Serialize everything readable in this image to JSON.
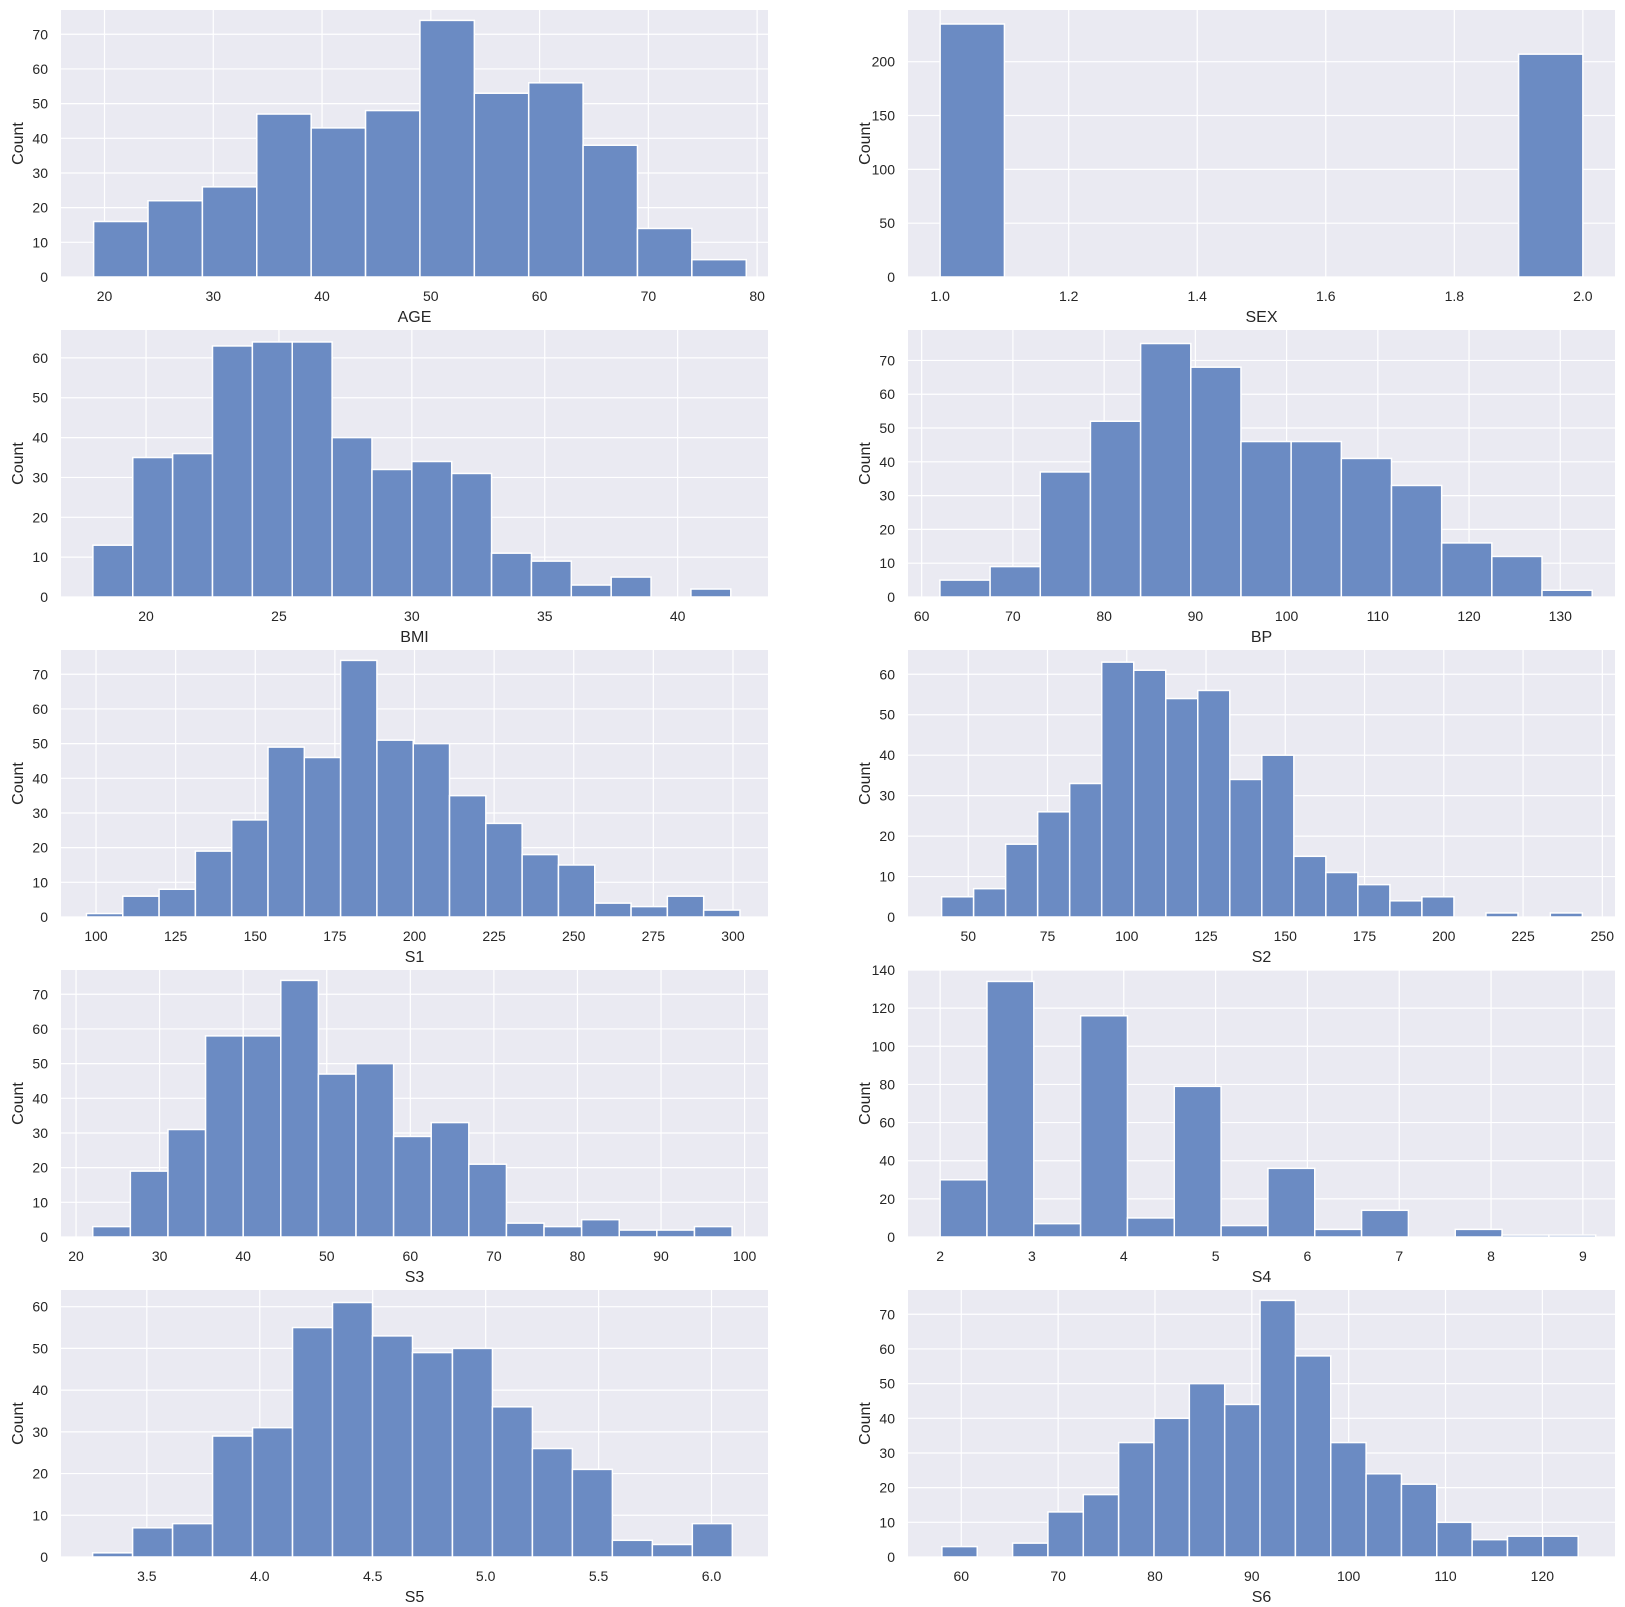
{
  "colors": {
    "plot_bg": "#eaeaf2",
    "grid": "#ffffff",
    "bar_fill": "#6b8bc3",
    "bar_edge": "#ffffff",
    "text": "#262626"
  },
  "chart_data": [
    {
      "type": "bar",
      "xlabel": "AGE",
      "ylabel": "Count",
      "grid": true,
      "xlim": [
        16,
        81
      ],
      "ylim": [
        0,
        77
      ],
      "xticks": [
        20,
        30,
        40,
        50,
        60,
        70,
        80
      ],
      "yticks": [
        0,
        10,
        20,
        30,
        40,
        50,
        60,
        70
      ],
      "bins": [
        {
          "x0": 19,
          "x1": 24,
          "y": 16
        },
        {
          "x0": 24,
          "x1": 29,
          "y": 22
        },
        {
          "x0": 29,
          "x1": 34,
          "y": 26
        },
        {
          "x0": 34,
          "x1": 39,
          "y": 47
        },
        {
          "x0": 39,
          "x1": 44,
          "y": 43
        },
        {
          "x0": 44,
          "x1": 49,
          "y": 48
        },
        {
          "x0": 49,
          "x1": 54,
          "y": 74
        },
        {
          "x0": 54,
          "x1": 59,
          "y": 53
        },
        {
          "x0": 59,
          "x1": 64,
          "y": 56
        },
        {
          "x0": 64,
          "x1": 69,
          "y": 38
        },
        {
          "x0": 69,
          "x1": 74,
          "y": 14
        },
        {
          "x0": 74,
          "x1": 79,
          "y": 5
        }
      ]
    },
    {
      "type": "bar",
      "xlabel": "SEX",
      "ylabel": "Count",
      "grid": true,
      "xlim": [
        0.95,
        2.05
      ],
      "ylim": [
        0,
        248
      ],
      "xticks": [
        "1.0",
        "1.2",
        "1.4",
        "1.6",
        "1.8",
        "2.0"
      ],
      "yticks": [
        0,
        50,
        100,
        150,
        200
      ],
      "bins": [
        {
          "x0": 1.0,
          "x1": 1.1,
          "y": 235
        },
        {
          "x0": 1.9,
          "x1": 2.0,
          "y": 207
        }
      ]
    },
    {
      "type": "bar",
      "xlabel": "BMI",
      "ylabel": "Count",
      "grid": true,
      "xlim": [
        16.8,
        43.4
      ],
      "ylim": [
        0,
        67
      ],
      "xticks": [
        20,
        25,
        30,
        35,
        40
      ],
      "yticks": [
        0,
        10,
        20,
        30,
        40,
        50,
        60
      ],
      "bins": [
        {
          "x0": 18,
          "x1": 19.5,
          "y": 13
        },
        {
          "x0": 19.5,
          "x1": 21,
          "y": 35
        },
        {
          "x0": 21,
          "x1": 22.5,
          "y": 36
        },
        {
          "x0": 22.5,
          "x1": 24,
          "y": 63
        },
        {
          "x0": 24,
          "x1": 25.5,
          "y": 64
        },
        {
          "x0": 25.5,
          "x1": 27,
          "y": 64
        },
        {
          "x0": 27,
          "x1": 28.5,
          "y": 40
        },
        {
          "x0": 28.5,
          "x1": 30,
          "y": 32
        },
        {
          "x0": 30,
          "x1": 31.5,
          "y": 34
        },
        {
          "x0": 31.5,
          "x1": 33,
          "y": 31
        },
        {
          "x0": 33,
          "x1": 34.5,
          "y": 11
        },
        {
          "x0": 34.5,
          "x1": 36,
          "y": 9
        },
        {
          "x0": 36,
          "x1": 37.5,
          "y": 3
        },
        {
          "x0": 37.5,
          "x1": 39,
          "y": 5
        },
        {
          "x0": 40.5,
          "x1": 42,
          "y": 2
        }
      ]
    },
    {
      "type": "bar",
      "xlabel": "BP",
      "ylabel": "Count",
      "grid": true,
      "xlim": [
        58.5,
        136
      ],
      "ylim": [
        0,
        79
      ],
      "xticks": [
        60,
        70,
        80,
        90,
        100,
        110,
        120,
        130
      ],
      "yticks": [
        0,
        10,
        20,
        30,
        40,
        50,
        60,
        70
      ],
      "bins": [
        {
          "x0": 62,
          "x1": 67.5,
          "y": 5
        },
        {
          "x0": 67.5,
          "x1": 73,
          "y": 9
        },
        {
          "x0": 73,
          "x1": 78.5,
          "y": 37
        },
        {
          "x0": 78.5,
          "x1": 84,
          "y": 52
        },
        {
          "x0": 84,
          "x1": 89.5,
          "y": 75
        },
        {
          "x0": 89.5,
          "x1": 95,
          "y": 68
        },
        {
          "x0": 95,
          "x1": 100.5,
          "y": 46
        },
        {
          "x0": 100.5,
          "x1": 106,
          "y": 46
        },
        {
          "x0": 106,
          "x1": 111.5,
          "y": 41
        },
        {
          "x0": 111.5,
          "x1": 117,
          "y": 33
        },
        {
          "x0": 117,
          "x1": 122.5,
          "y": 16
        },
        {
          "x0": 122.5,
          "x1": 128,
          "y": 12
        },
        {
          "x0": 128,
          "x1": 133.5,
          "y": 2
        }
      ]
    },
    {
      "type": "bar",
      "xlabel": "S1",
      "ylabel": "Count",
      "grid": true,
      "xlim": [
        89,
        311
      ],
      "ylim": [
        0,
        77
      ],
      "xticks": [
        100,
        125,
        150,
        175,
        200,
        225,
        250,
        275,
        300
      ],
      "yticks": [
        0,
        10,
        20,
        30,
        40,
        50,
        60,
        70
      ],
      "bins": [
        {
          "x0": 97,
          "x1": 108.4,
          "y": 1
        },
        {
          "x0": 108.4,
          "x1": 119.8,
          "y": 6
        },
        {
          "x0": 119.8,
          "x1": 131.2,
          "y": 8
        },
        {
          "x0": 131.2,
          "x1": 142.6,
          "y": 19
        },
        {
          "x0": 142.6,
          "x1": 154,
          "y": 28
        },
        {
          "x0": 154,
          "x1": 165.4,
          "y": 49
        },
        {
          "x0": 165.4,
          "x1": 176.8,
          "y": 46
        },
        {
          "x0": 176.8,
          "x1": 188.2,
          "y": 74
        },
        {
          "x0": 188.2,
          "x1": 199.6,
          "y": 51
        },
        {
          "x0": 199.6,
          "x1": 211,
          "y": 50
        },
        {
          "x0": 211,
          "x1": 222.4,
          "y": 35
        },
        {
          "x0": 222.4,
          "x1": 233.8,
          "y": 27
        },
        {
          "x0": 233.8,
          "x1": 245.2,
          "y": 18
        },
        {
          "x0": 245.2,
          "x1": 256.6,
          "y": 15
        },
        {
          "x0": 256.6,
          "x1": 268,
          "y": 4
        },
        {
          "x0": 268,
          "x1": 279.4,
          "y": 3
        },
        {
          "x0": 279.4,
          "x1": 290.8,
          "y": 6
        },
        {
          "x0": 290.8,
          "x1": 302.2,
          "y": 2
        }
      ]
    },
    {
      "type": "bar",
      "xlabel": "S2",
      "ylabel": "Count",
      "grid": true,
      "xlim": [
        31,
        254
      ],
      "ylim": [
        0,
        66
      ],
      "xticks": [
        50,
        75,
        100,
        125,
        150,
        175,
        200,
        225,
        250
      ],
      "yticks": [
        0,
        10,
        20,
        30,
        40,
        50,
        60
      ],
      "bins": [
        {
          "x0": 41.6,
          "x1": 51.7,
          "y": 5
        },
        {
          "x0": 51.7,
          "x1": 61.8,
          "y": 7
        },
        {
          "x0": 61.8,
          "x1": 71.9,
          "y": 18
        },
        {
          "x0": 71.9,
          "x1": 82,
          "y": 26
        },
        {
          "x0": 82,
          "x1": 92.1,
          "y": 33
        },
        {
          "x0": 92.1,
          "x1": 102.2,
          "y": 63
        },
        {
          "x0": 102.2,
          "x1": 112.3,
          "y": 61
        },
        {
          "x0": 112.3,
          "x1": 122.4,
          "y": 54
        },
        {
          "x0": 122.4,
          "x1": 132.5,
          "y": 56
        },
        {
          "x0": 132.5,
          "x1": 142.6,
          "y": 34
        },
        {
          "x0": 142.6,
          "x1": 152.7,
          "y": 40
        },
        {
          "x0": 152.7,
          "x1": 162.8,
          "y": 15
        },
        {
          "x0": 162.8,
          "x1": 172.9,
          "y": 11
        },
        {
          "x0": 172.9,
          "x1": 183,
          "y": 8
        },
        {
          "x0": 183,
          "x1": 193.1,
          "y": 4
        },
        {
          "x0": 193.1,
          "x1": 203.2,
          "y": 5
        },
        {
          "x0": 213.3,
          "x1": 223.4,
          "y": 1
        },
        {
          "x0": 233.6,
          "x1": 243.7,
          "y": 1
        }
      ]
    },
    {
      "type": "bar",
      "xlabel": "S3",
      "ylabel": "Count",
      "grid": true,
      "xlim": [
        18.2,
        102.8
      ],
      "ylim": [
        0,
        77
      ],
      "xticks": [
        20,
        30,
        40,
        50,
        60,
        70,
        80,
        90,
        100
      ],
      "yticks": [
        0,
        10,
        20,
        30,
        40,
        50,
        60,
        70
      ],
      "bins": [
        {
          "x0": 22,
          "x1": 26.5,
          "y": 3
        },
        {
          "x0": 26.5,
          "x1": 31,
          "y": 19
        },
        {
          "x0": 31,
          "x1": 35.5,
          "y": 31
        },
        {
          "x0": 35.5,
          "x1": 40,
          "y": 58
        },
        {
          "x0": 40,
          "x1": 44.5,
          "y": 58
        },
        {
          "x0": 44.5,
          "x1": 49,
          "y": 74
        },
        {
          "x0": 49,
          "x1": 53.5,
          "y": 47
        },
        {
          "x0": 53.5,
          "x1": 58,
          "y": 50
        },
        {
          "x0": 58,
          "x1": 62.5,
          "y": 29
        },
        {
          "x0": 62.5,
          "x1": 67,
          "y": 33
        },
        {
          "x0": 67,
          "x1": 71.5,
          "y": 21
        },
        {
          "x0": 71.5,
          "x1": 76,
          "y": 4
        },
        {
          "x0": 76,
          "x1": 80.5,
          "y": 3
        },
        {
          "x0": 80.5,
          "x1": 85,
          "y": 5
        },
        {
          "x0": 85,
          "x1": 89.5,
          "y": 2
        },
        {
          "x0": 89.5,
          "x1": 94,
          "y": 2
        },
        {
          "x0": 94,
          "x1": 98.5,
          "y": 3
        }
      ]
    },
    {
      "type": "bar",
      "xlabel": "S4",
      "ylabel": "Count",
      "grid": true,
      "xlim": [
        1.65,
        9.35
      ],
      "ylim": [
        0,
        140
      ],
      "xticks": [
        2,
        3,
        4,
        5,
        6,
        7,
        8,
        9
      ],
      "yticks": [
        0,
        20,
        40,
        60,
        80,
        100,
        120,
        140
      ],
      "bins": [
        {
          "x0": 2,
          "x1": 2.51,
          "y": 30
        },
        {
          "x0": 2.51,
          "x1": 3.02,
          "y": 134
        },
        {
          "x0": 3.02,
          "x1": 3.53,
          "y": 7
        },
        {
          "x0": 3.53,
          "x1": 4.04,
          "y": 116
        },
        {
          "x0": 4.04,
          "x1": 4.55,
          "y": 10
        },
        {
          "x0": 4.55,
          "x1": 5.06,
          "y": 79
        },
        {
          "x0": 5.06,
          "x1": 5.57,
          "y": 6
        },
        {
          "x0": 5.57,
          "x1": 6.08,
          "y": 36
        },
        {
          "x0": 6.08,
          "x1": 6.59,
          "y": 4
        },
        {
          "x0": 6.59,
          "x1": 7.1,
          "y": 14
        },
        {
          "x0": 7.61,
          "x1": 8.12,
          "y": 4
        },
        {
          "x0": 8.12,
          "x1": 8.63,
          "y": 1
        },
        {
          "x0": 8.63,
          "x1": 9.14,
          "y": 1
        }
      ]
    },
    {
      "type": "bar",
      "xlabel": "S5",
      "ylabel": "Count",
      "grid": true,
      "xlim": [
        3.12,
        6.25
      ],
      "ylim": [
        0,
        64
      ],
      "xticks": [
        "3.5",
        "4.0",
        "4.5",
        "5.0",
        "5.5",
        "6.0"
      ],
      "yticks": [
        0,
        10,
        20,
        30,
        40,
        50,
        60
      ],
      "bins": [
        {
          "x0": 3.26,
          "x1": 3.437,
          "y": 1
        },
        {
          "x0": 3.437,
          "x1": 3.614,
          "y": 7
        },
        {
          "x0": 3.614,
          "x1": 3.791,
          "y": 8
        },
        {
          "x0": 3.791,
          "x1": 3.968,
          "y": 29
        },
        {
          "x0": 3.968,
          "x1": 4.145,
          "y": 31
        },
        {
          "x0": 4.145,
          "x1": 4.322,
          "y": 55
        },
        {
          "x0": 4.322,
          "x1": 4.499,
          "y": 61
        },
        {
          "x0": 4.499,
          "x1": 4.676,
          "y": 53
        },
        {
          "x0": 4.676,
          "x1": 4.853,
          "y": 49
        },
        {
          "x0": 4.853,
          "x1": 5.03,
          "y": 50
        },
        {
          "x0": 5.03,
          "x1": 5.207,
          "y": 36
        },
        {
          "x0": 5.207,
          "x1": 5.384,
          "y": 26
        },
        {
          "x0": 5.384,
          "x1": 5.561,
          "y": 21
        },
        {
          "x0": 5.561,
          "x1": 5.738,
          "y": 4
        },
        {
          "x0": 5.738,
          "x1": 5.915,
          "y": 3
        },
        {
          "x0": 5.915,
          "x1": 6.092,
          "y": 8
        }
      ]
    },
    {
      "type": "bar",
      "xlabel": "S6",
      "ylabel": "Count",
      "grid": true,
      "xlim": [
        54.5,
        127.5
      ],
      "ylim": [
        0,
        77
      ],
      "xticks": [
        60,
        70,
        80,
        90,
        100,
        110,
        120
      ],
      "yticks": [
        0,
        10,
        20,
        30,
        40,
        50,
        60,
        70
      ],
      "bins": [
        {
          "x0": 58,
          "x1": 61.65,
          "y": 3
        },
        {
          "x0": 65.3,
          "x1": 68.95,
          "y": 4
        },
        {
          "x0": 68.95,
          "x1": 72.6,
          "y": 13
        },
        {
          "x0": 72.6,
          "x1": 76.25,
          "y": 18
        },
        {
          "x0": 76.25,
          "x1": 79.9,
          "y": 33
        },
        {
          "x0": 79.9,
          "x1": 83.55,
          "y": 40
        },
        {
          "x0": 83.55,
          "x1": 87.2,
          "y": 50
        },
        {
          "x0": 87.2,
          "x1": 90.85,
          "y": 44
        },
        {
          "x0": 90.85,
          "x1": 94.5,
          "y": 74
        },
        {
          "x0": 94.5,
          "x1": 98.15,
          "y": 58
        },
        {
          "x0": 98.15,
          "x1": 101.8,
          "y": 33
        },
        {
          "x0": 101.8,
          "x1": 105.45,
          "y": 24
        },
        {
          "x0": 105.45,
          "x1": 109.1,
          "y": 21
        },
        {
          "x0": 109.1,
          "x1": 112.75,
          "y": 10
        },
        {
          "x0": 112.75,
          "x1": 116.4,
          "y": 5
        },
        {
          "x0": 116.4,
          "x1": 120.05,
          "y": 6
        },
        {
          "x0": 120.05,
          "x1": 123.7,
          "y": 6
        }
      ]
    }
  ]
}
